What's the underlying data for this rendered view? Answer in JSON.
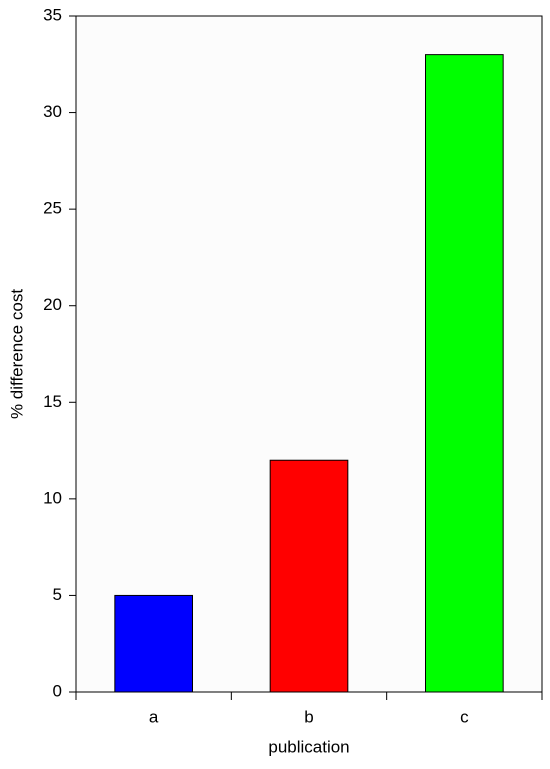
{
  "chart_data": {
    "type": "bar",
    "x_label": "publication",
    "y_label": "% difference cost",
    "categories": [
      "a",
      "b",
      "c"
    ],
    "values": [
      5,
      12,
      33
    ],
    "colors": [
      "#0000ff",
      "#ff0000",
      "#00ff00"
    ],
    "ylim": [
      0,
      35
    ],
    "yticks": [
      0,
      5,
      10,
      15,
      20,
      25,
      30,
      35
    ],
    "grid": false
  }
}
